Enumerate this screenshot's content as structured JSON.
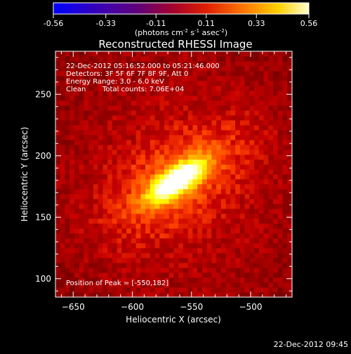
{
  "colorbar": {
    "ticks": [
      "-0.56",
      "-0.33",
      "-0.11",
      "0.11",
      "0.33",
      "0.56"
    ],
    "units_main": "(photons cm",
    "units_sup1": "-2",
    "units_mid": " s",
    "units_sup2": "-1",
    "units_mid2": " asec",
    "units_sup3": "-2",
    "units_end": ")",
    "colormap": "hot (black-red-yellow-white)"
  },
  "chart_data": {
    "type": "heatmap",
    "title": "Reconstructed RHESSI Image",
    "xlabel": "Heliocentric X (arcsec)",
    "ylabel": "Heliocentric Y (arcsec)",
    "xlim": [
      -665,
      -465
    ],
    "ylim": [
      85,
      285
    ],
    "x_ticks": [
      -650,
      -600,
      -550,
      -500
    ],
    "y_ticks": [
      100,
      150,
      200,
      250
    ],
    "x_tick_labels": [
      "−650",
      "−600",
      "−550",
      "−500"
    ],
    "y_tick_labels": [
      "100",
      "150",
      "200",
      "250"
    ],
    "vrange": [
      -0.56,
      0.56
    ],
    "peak_position": [
      -550,
      182
    ],
    "source": {
      "center": [
        -562,
        180
      ],
      "elongation_angle_deg": 32,
      "semi_major": 22,
      "semi_minor": 6.5
    },
    "annotations": [
      "22-Dec-2012 05:16:52.000 to 05:21:46.000",
      "Detectors: 3F 5F 6F 7F 8F 9F, Att 0",
      "Energy Range: 3.0 - 6.0 keV",
      "Clean",
      "Total counts: 7.06E+04",
      "Position of Peak = [-550,182]"
    ]
  },
  "timestamp": "22-Dec-2012 09:45"
}
